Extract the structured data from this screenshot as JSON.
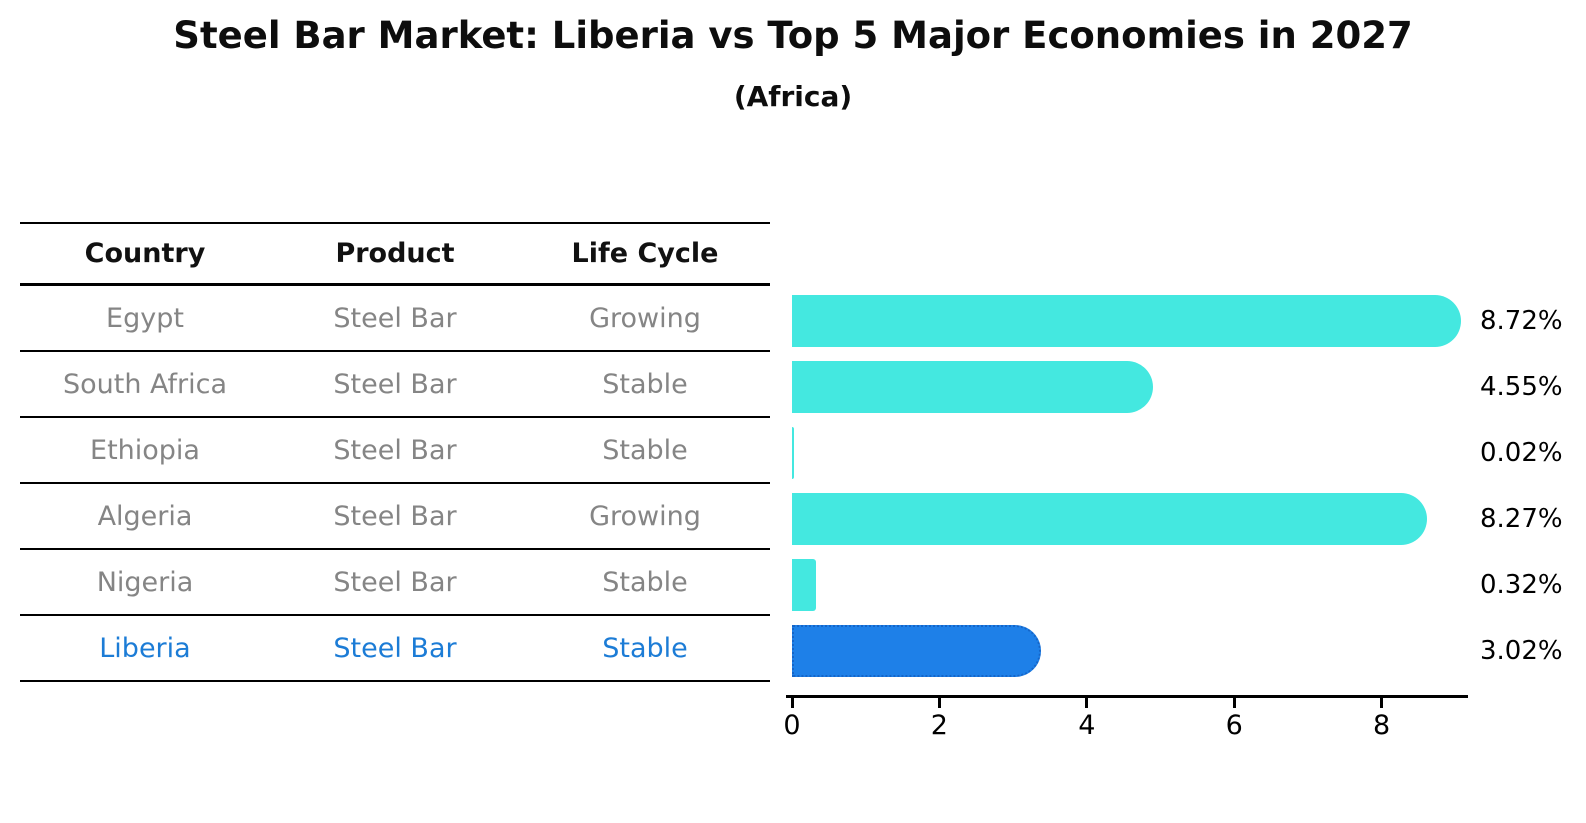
{
  "title": "Steel Bar Market: Liberia vs Top 5 Major Economies in 2027",
  "subtitle": "(Africa)",
  "colors": {
    "bar_default": "#44e8e0",
    "bar_highlight": "#1e80e8",
    "bar_highlight_border": "#1565c8",
    "highlight_text": "#1c7cd6",
    "row_text": "#858585",
    "header_text": "#111111",
    "label_text": "#000000"
  },
  "table": {
    "headers": [
      "Country",
      "Product",
      "Life Cycle"
    ]
  },
  "chart_data": {
    "type": "bar",
    "orientation": "horizontal",
    "title": "Steel Bar Market: Liberia vs Top 5 Major Economies in 2027",
    "subtitle": "(Africa)",
    "categories": [
      "Egypt",
      "South Africa",
      "Ethiopia",
      "Algeria",
      "Nigeria",
      "Liberia"
    ],
    "values": [
      8.72,
      4.55,
      0.02,
      8.27,
      0.32,
      3.02
    ],
    "value_labels": [
      "8.72%",
      "4.55%",
      "0.02%",
      "8.27%",
      "0.32%",
      "3.02%"
    ],
    "rows": [
      {
        "country": "Egypt",
        "product": "Steel Bar",
        "life_cycle": "Growing",
        "value": 8.72,
        "label": "8.72%",
        "highlight": false
      },
      {
        "country": "South Africa",
        "product": "Steel Bar",
        "life_cycle": "Stable",
        "value": 4.55,
        "label": "4.55%",
        "highlight": false
      },
      {
        "country": "Ethiopia",
        "product": "Steel Bar",
        "life_cycle": "Stable",
        "value": 0.02,
        "label": "0.02%",
        "highlight": false
      },
      {
        "country": "Algeria",
        "product": "Steel Bar",
        "life_cycle": "Growing",
        "value": 8.27,
        "label": "8.27%",
        "highlight": false
      },
      {
        "country": "Nigeria",
        "product": "Steel Bar",
        "life_cycle": "Stable",
        "value": 0.32,
        "label": "0.32%",
        "highlight": false
      },
      {
        "country": "Liberia",
        "product": "Steel Bar",
        "life_cycle": "Stable",
        "value": 3.02,
        "label": "3.02%",
        "highlight": true
      }
    ],
    "x_ticks": [
      0,
      2,
      4,
      6,
      8
    ],
    "xlim": [
      0,
      9.16
    ],
    "grid": false,
    "legend": null
  }
}
